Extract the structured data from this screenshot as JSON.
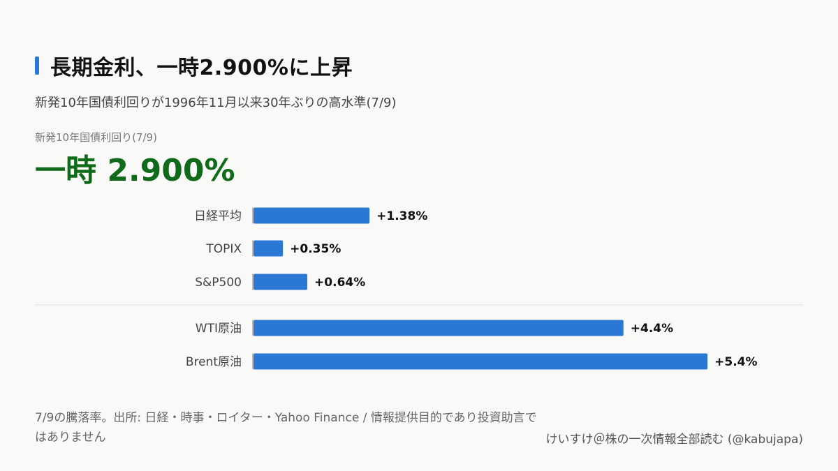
{
  "header": {
    "title": "長期金利、一時2.900%に上昇",
    "subtitle": "新発10年国債利回りが1996年11月以来30年ぶりの高水準(7/9)"
  },
  "kpi": {
    "label": "新発10年国債利回り(7/9)",
    "value": "一時 2.900%"
  },
  "chart_data": {
    "type": "bar",
    "orientation": "horizontal",
    "categories": [
      "日経平均",
      "TOPIX",
      "S&P500",
      "WTI原油",
      "Brent原油"
    ],
    "values": [
      1.38,
      0.35,
      0.64,
      4.4,
      5.4
    ],
    "value_labels": [
      "+1.38%",
      "+0.35%",
      "+0.64%",
      "+4.4%",
      "+5.4%"
    ],
    "groups": [
      [
        0,
        1,
        2
      ],
      [
        3,
        4
      ]
    ],
    "bar_color": "#2b78d4"
  },
  "footer": {
    "note": "7/9の騰落率。出所: 日経・時事・ロイター・Yahoo Finance / 情報提供目的であり投資助言ではありません",
    "credit": "けいすけ＠株の一次情報全部読む (@kabujapa)"
  },
  "colors": {
    "accent": "#2b78d4",
    "kpi": "#0f6b1a",
    "background": "#f9f9f7"
  }
}
